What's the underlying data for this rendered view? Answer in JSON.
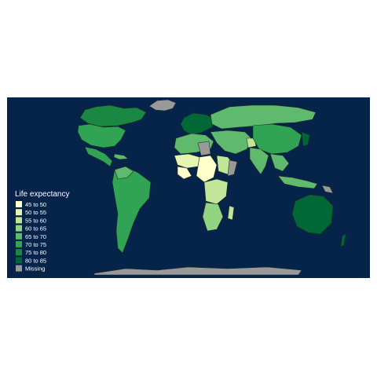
{
  "map": {
    "legend": {
      "title": "Life expectancy",
      "items": [
        {
          "label": "45 to 50",
          "color": "#ffffcc"
        },
        {
          "label": "50 to 55",
          "color": "#e6f5b0"
        },
        {
          "label": "55 to 60",
          "color": "#c2e699"
        },
        {
          "label": "60 to 65",
          "color": "#93d384"
        },
        {
          "label": "65 to 70",
          "color": "#5fba6d"
        },
        {
          "label": "70 to 75",
          "color": "#31a354"
        },
        {
          "label": "75 to 80",
          "color": "#1a8743"
        },
        {
          "label": "80 to 85",
          "color": "#006837"
        },
        {
          "label": "Missing",
          "color": "#999999"
        }
      ]
    },
    "colors": {
      "ocean": "#06234a",
      "border": "#1f2f1f"
    }
  }
}
